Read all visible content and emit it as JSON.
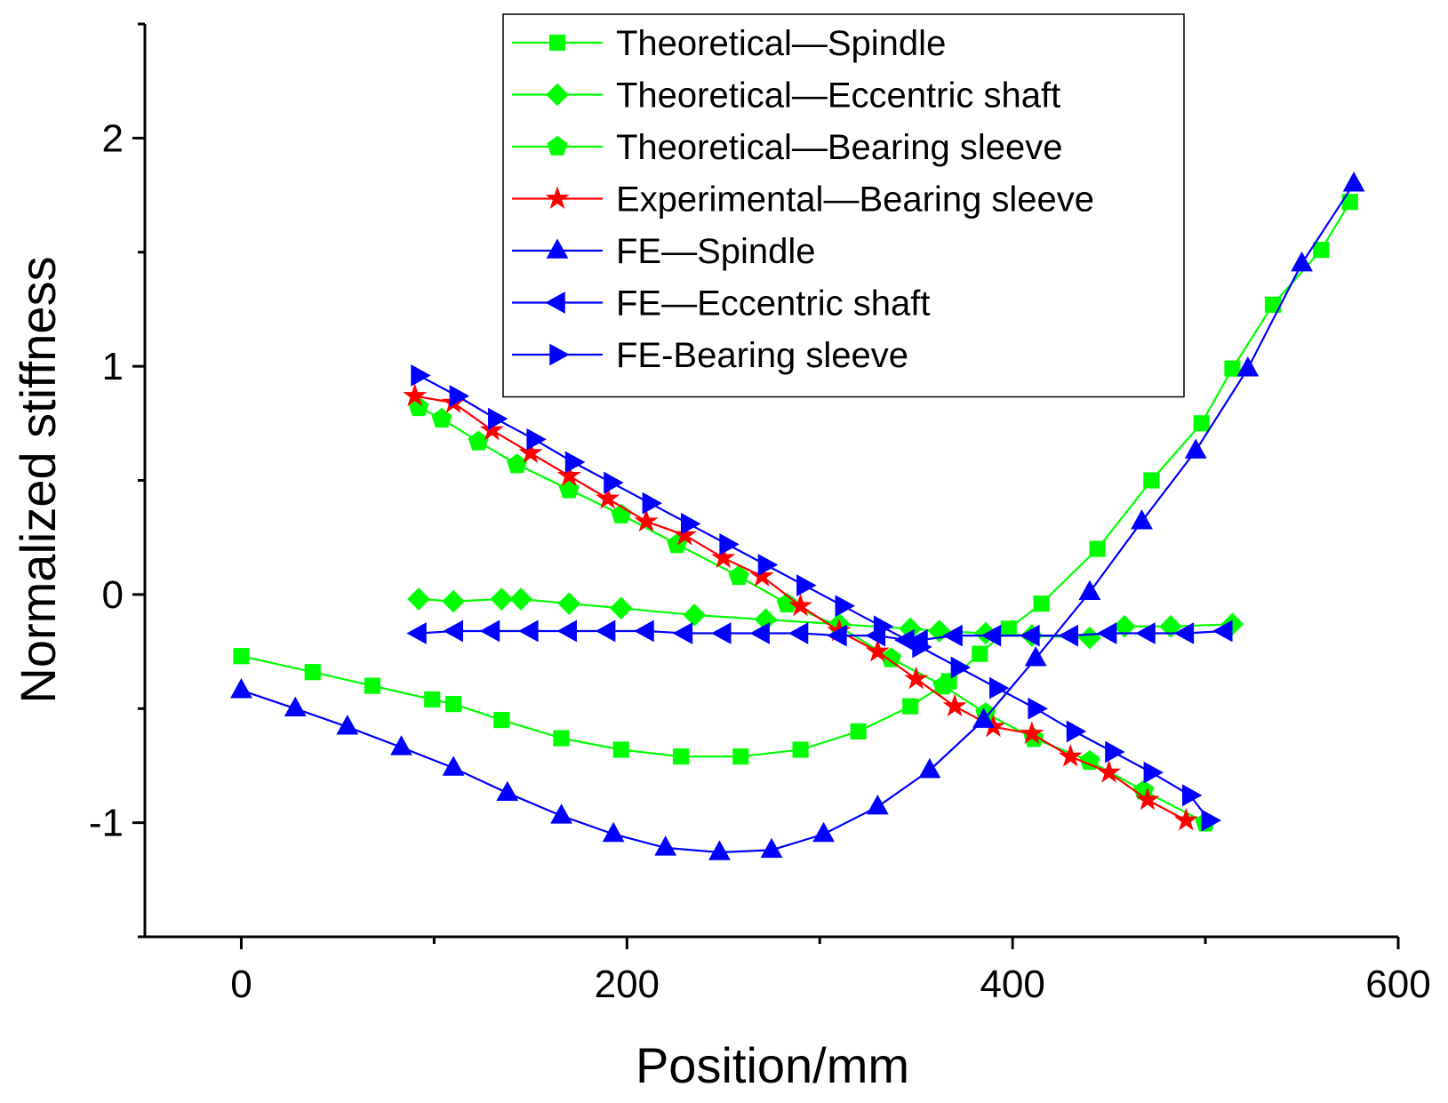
{
  "chart_data": {
    "type": "line",
    "title": "",
    "xlabel": "Position/mm",
    "ylabel": "Normalized stiffness",
    "xlim": [
      -50,
      600
    ],
    "ylim": [
      -1.5,
      2.5
    ],
    "xticks": [
      0,
      200,
      400,
      600
    ],
    "xticks_minor": [
      100,
      300,
      500
    ],
    "yticks": [
      -1,
      0,
      1,
      2
    ],
    "yticks_minor": [
      -1.5,
      -0.5,
      0.5,
      1.5,
      2.5
    ],
    "legend_position": "top-right",
    "series": [
      {
        "name": "Theoretical—Spindle",
        "color": "#00ff00",
        "marker": "square",
        "x": [
          0,
          37,
          68,
          99,
          110,
          135,
          166,
          197,
          228,
          259,
          290,
          320,
          347,
          367,
          383,
          398,
          415,
          444,
          472,
          498,
          514,
          535,
          560,
          575
        ],
        "y": [
          -0.27,
          -0.34,
          -0.4,
          -0.46,
          -0.48,
          -0.55,
          -0.63,
          -0.68,
          -0.71,
          -0.71,
          -0.68,
          -0.6,
          -0.49,
          -0.38,
          -0.26,
          -0.15,
          -0.04,
          0.2,
          0.5,
          0.75,
          0.99,
          1.27,
          1.51,
          1.72
        ]
      },
      {
        "name": "Theoretical—Eccentric shaft",
        "color": "#00ff00",
        "marker": "diamond",
        "x": [
          92,
          110,
          135,
          145,
          170,
          197,
          235,
          272,
          310,
          347,
          362,
          386,
          410,
          440,
          458,
          482,
          514
        ],
        "y": [
          -0.02,
          -0.03,
          -0.02,
          -0.02,
          -0.04,
          -0.06,
          -0.09,
          -0.11,
          -0.13,
          -0.15,
          -0.16,
          -0.17,
          -0.18,
          -0.19,
          -0.14,
          -0.14,
          -0.13
        ]
      },
      {
        "name": "Theoretical—Bearing sleeve",
        "color": "#00ff00",
        "marker": "pentagon",
        "x": [
          92,
          104,
          123,
          143,
          170,
          197,
          226,
          258,
          283,
          310,
          337,
          364,
          386,
          411,
          440,
          468,
          500
        ],
        "y": [
          0.82,
          0.77,
          0.67,
          0.57,
          0.46,
          0.35,
          0.22,
          0.08,
          -0.04,
          -0.14,
          -0.28,
          -0.4,
          -0.52,
          -0.63,
          -0.73,
          -0.86,
          -1.0
        ]
      },
      {
        "name": "Experimental—Bearing sleeve",
        "color": "#ff0000",
        "marker": "star",
        "x": [
          90,
          110,
          130,
          150,
          170,
          190,
          210,
          230,
          250,
          270,
          290,
          310,
          330,
          350,
          370,
          390,
          410,
          430,
          450,
          470,
          490
        ],
        "y": [
          0.87,
          0.84,
          0.72,
          0.62,
          0.52,
          0.42,
          0.32,
          0.26,
          0.16,
          0.08,
          -0.05,
          -0.16,
          -0.25,
          -0.37,
          -0.49,
          -0.58,
          -0.61,
          -0.71,
          -0.78,
          -0.9,
          -0.99
        ]
      },
      {
        "name": "FE—Spindle",
        "color": "#0000ff",
        "marker": "triangle-up",
        "x": [
          0,
          28,
          55,
          83,
          110,
          138,
          166,
          193,
          220,
          248,
          275,
          302,
          330,
          357,
          385,
          412,
          440,
          467,
          495,
          522,
          550,
          577
        ],
        "y": [
          -0.42,
          -0.5,
          -0.58,
          -0.67,
          -0.76,
          -0.87,
          -0.97,
          -1.05,
          -1.11,
          -1.13,
          -1.12,
          -1.05,
          -0.93,
          -0.77,
          -0.55,
          -0.28,
          0.01,
          0.32,
          0.63,
          0.99,
          1.45,
          1.8
        ]
      },
      {
        "name": "FE—Eccentric shaft",
        "color": "#0000ff",
        "marker": "triangle-left",
        "x": [
          92,
          111,
          130,
          150,
          170,
          190,
          210,
          230,
          250,
          270,
          290,
          310,
          330,
          345,
          352,
          370,
          390,
          410,
          430,
          450,
          470,
          490,
          510
        ],
        "y": [
          -0.17,
          -0.16,
          -0.16,
          -0.16,
          -0.16,
          -0.16,
          -0.16,
          -0.17,
          -0.17,
          -0.17,
          -0.17,
          -0.18,
          -0.18,
          -0.2,
          -0.2,
          -0.18,
          -0.18,
          -0.18,
          -0.18,
          -0.17,
          -0.17,
          -0.17,
          -0.16
        ]
      },
      {
        "name": "FE-Bearing sleeve",
        "color": "#0000ff",
        "marker": "triangle-right",
        "x": [
          92,
          112,
          132,
          152,
          172,
          192,
          212,
          232,
          252,
          272,
          292,
          312,
          332,
          352,
          372,
          392,
          412,
          432,
          452,
          472,
          492,
          502
        ],
        "y": [
          0.96,
          0.87,
          0.77,
          0.68,
          0.58,
          0.49,
          0.4,
          0.31,
          0.22,
          0.13,
          0.04,
          -0.05,
          -0.14,
          -0.23,
          -0.32,
          -0.41,
          -0.5,
          -0.6,
          -0.69,
          -0.78,
          -0.88,
          -0.99
        ]
      }
    ]
  }
}
